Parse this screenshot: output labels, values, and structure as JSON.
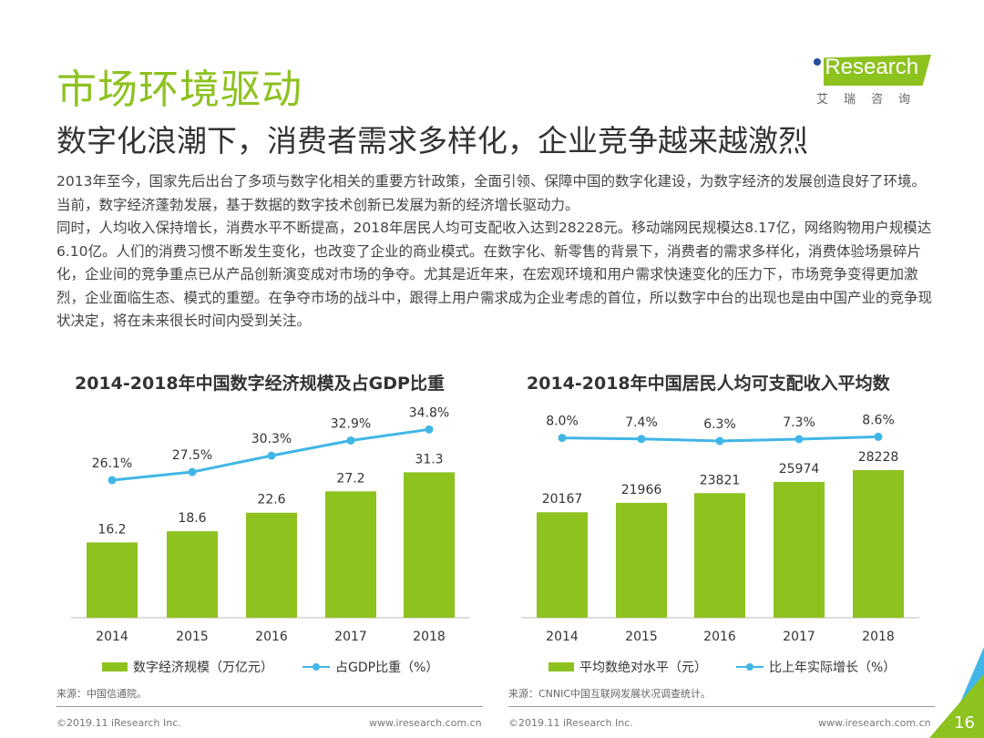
{
  "header": {
    "title": "市场环境驱动",
    "subtitle": "数字化浪潮下，消费者需求多样化，企业竞争越来越激烈"
  },
  "logo": {
    "brand": "iResearch",
    "cn": "艾瑞咨询"
  },
  "body": {
    "p1": "2013年至今，国家先后出台了多项与数字化相关的重要方针政策，全面引领、保障中国的数字化建设，为数字经济的发展创造良好了环境。当前，数字经济蓬勃发展，基于数据的数字技术创新已发展为新的经济增长驱动力。",
    "p2": "同时，人均收入保持增长，消费水平不断提高，2018年居民人均可支配收入达到28228元。移动端网民规模达8.17亿，网络购物用户规模达6.10亿。人们的消费习惯不断发生变化，也改变了企业的商业模式。在数字化、新零售的背景下，消费者的需求多样化，消费体验场景碎片化，企业间的竞争重点已从产品创新演变成对市场的争夺。尤其是近年来，在宏观环境和用户需求快速变化的压力下，市场竞争变得更加激烈，企业面临生态、模式的重塑。在争夺市场的战斗中，跟得上用户需求成为企业考虑的首位，所以数字中台的出现也是由中国产业的竞争现状决定，将在未来很长时间内受到关注。"
  },
  "colors": {
    "bar": "#8dc21f",
    "line": "#41b6e6",
    "title": "#8dc21f"
  },
  "chart_data": [
    {
      "type": "bar+line",
      "title": "2014-2018年中国数字经济规模及占GDP比重",
      "categories": [
        "2014",
        "2015",
        "2016",
        "2017",
        "2018"
      ],
      "series": [
        {
          "name": "数字经济规模（万亿元）",
          "type": "bar",
          "values": [
            16.2,
            18.6,
            22.6,
            27.2,
            31.3
          ],
          "labels": [
            "16.2",
            "18.6",
            "22.6",
            "27.2",
            "31.3"
          ]
        },
        {
          "name": "占GDP比重（%）",
          "type": "line",
          "values": [
            26.1,
            27.5,
            30.3,
            32.9,
            34.8
          ],
          "labels": [
            "26.1%",
            "27.5%",
            "30.3%",
            "32.9%",
            "34.8%"
          ]
        }
      ],
      "source": "来源：中国信通院。"
    },
    {
      "type": "bar+line",
      "title": "2014-2018年中国居民人均可支配收入平均数",
      "categories": [
        "2014",
        "2015",
        "2016",
        "2017",
        "2018"
      ],
      "series": [
        {
          "name": "平均数绝对水平（元）",
          "type": "bar",
          "values": [
            20167,
            21966,
            23821,
            25974,
            28228
          ],
          "labels": [
            "20167",
            "21966",
            "23821",
            "25974",
            "28228"
          ]
        },
        {
          "name": "比上年实际增长（%）",
          "type": "line",
          "values": [
            8.0,
            7.4,
            6.3,
            7.3,
            8.6
          ],
          "labels": [
            "8.0%",
            "7.4%",
            "6.3%",
            "7.3%",
            "8.6%"
          ]
        }
      ],
      "source": "来源：CNNIC中国互联网发展状况调查统计。"
    }
  ],
  "footer": {
    "copyright": "©2019.11 iResearch Inc.",
    "url": "www.iresearch.com.cn",
    "page": "16"
  }
}
